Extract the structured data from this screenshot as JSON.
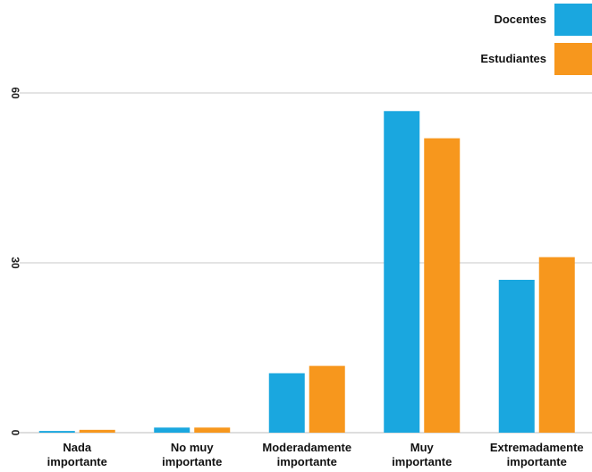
{
  "chart_data": {
    "type": "bar",
    "categories": [
      [
        "Nada",
        "importante"
      ],
      [
        "No muy",
        "importante"
      ],
      [
        "Moderadamente",
        "importante"
      ],
      [
        "Muy",
        "importante"
      ],
      [
        "Extremadamente",
        "importante"
      ]
    ],
    "series": [
      {
        "name": "Docentes",
        "color": "#1aa7df",
        "values": [
          0.3,
          0.9,
          10.5,
          56.8,
          27.0
        ]
      },
      {
        "name": "Estudiantes",
        "color": "#f7971d",
        "values": [
          0.5,
          0.9,
          11.8,
          52.0,
          31.0
        ]
      }
    ],
    "yticks": [
      0,
      30,
      60
    ],
    "ylim": [
      0,
      60
    ],
    "grid": true,
    "legend_position": "top-right",
    "title": "",
    "xlabel": "",
    "ylabel": ""
  }
}
